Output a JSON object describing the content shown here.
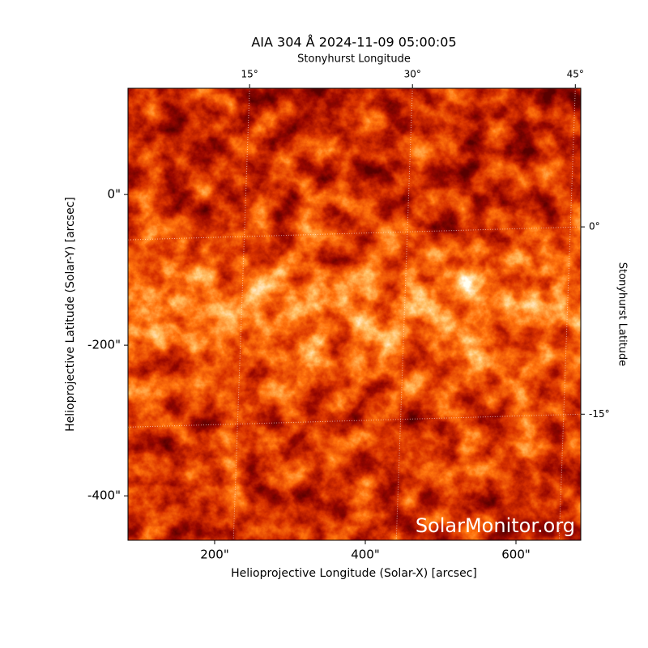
{
  "chart_data": {
    "type": "image",
    "title": "AIA 304 Å 2024-11-09 05:00:05",
    "x2label": "Stonyhurst Longitude",
    "y2label": "Stonyhurst Latitude",
    "xlabel": "Helioprojective Longitude (Solar-X) [arcsec]",
    "ylabel": "Helioprojective Latitude (Solar-Y) [arcsec]",
    "watermark": "SolarMonitor.org",
    "xlim": [
      85,
      686
    ],
    "xticks": [
      {
        "value": 200,
        "label": "200\""
      },
      {
        "value": 400,
        "label": "400\""
      },
      {
        "value": 600,
        "label": "600\""
      }
    ],
    "ylim": [
      -459,
      141
    ],
    "yticks": [
      {
        "value": 0,
        "label": "0\""
      },
      {
        "value": -200,
        "label": "-200\""
      },
      {
        "value": -400,
        "label": "-400\""
      }
    ],
    "x2lim": [
      3.8,
      45.5
    ],
    "x2ticks": [
      {
        "value": 15,
        "label": "15°"
      },
      {
        "value": 30,
        "label": "30°"
      },
      {
        "value": 45,
        "label": "45°"
      }
    ],
    "y2lim": [
      -25.1,
      11.1
    ],
    "y2ticks": [
      {
        "value": 0,
        "label": "0°"
      },
      {
        "value": -15,
        "label": "-15°"
      }
    ],
    "grid": true
  }
}
